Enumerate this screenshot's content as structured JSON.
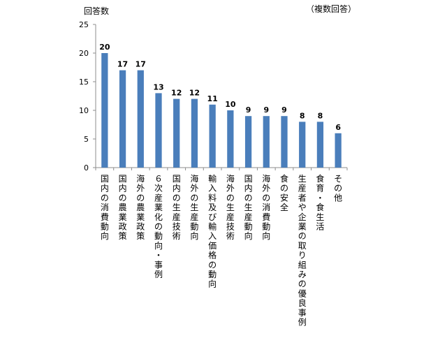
{
  "chart_data": {
    "type": "bar",
    "ylabel": "回答数",
    "note": "（複数回答）",
    "ylim": [
      0,
      25
    ],
    "yticks": [
      0,
      5,
      10,
      15,
      20,
      25
    ],
    "categories": [
      "国内の消費動向",
      "国内の農業政策",
      "海外の農業政策",
      "６次産業化の動向・事例",
      "国内の生産技術",
      "海外の生産動向",
      "輸入料及び輸入価格の動向",
      "海外の生産技術",
      "国内の生産動向",
      "海外の消費動向",
      "食の安全",
      "生産者や企業の取り組みの優良事例",
      "食育・食生活",
      "その他"
    ],
    "values": [
      20,
      17,
      17,
      13,
      12,
      12,
      11,
      10,
      9,
      9,
      9,
      8,
      8,
      6
    ],
    "bar_color": "#4a7ebb",
    "grid": false,
    "legend": "none"
  }
}
